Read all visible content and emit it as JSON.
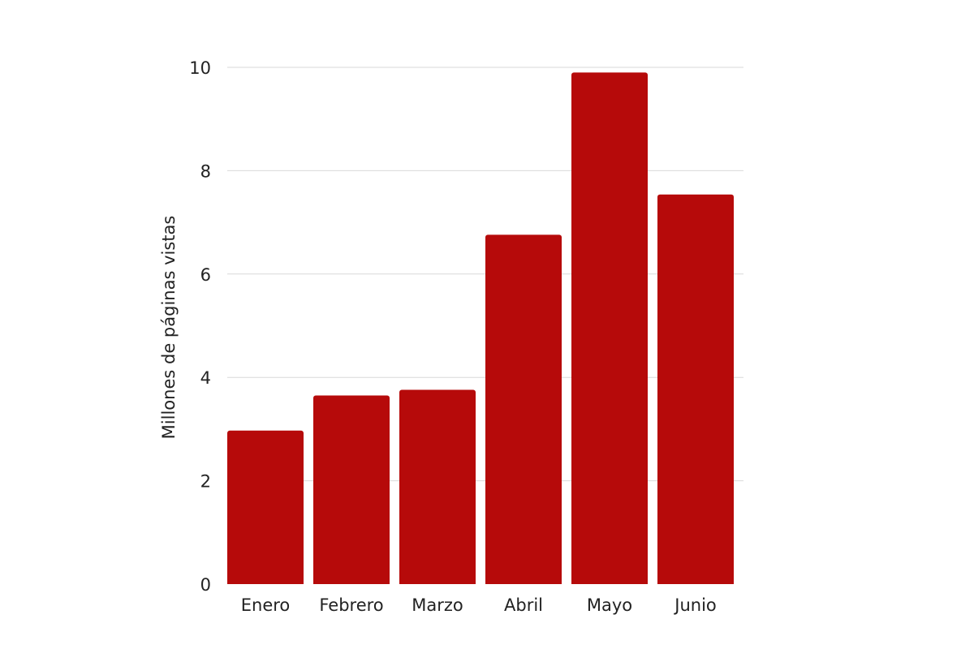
{
  "chart_data": {
    "type": "bar",
    "categories": [
      "Enero",
      "Febrero",
      "Marzo",
      "Abril",
      "Mayo",
      "Junio"
    ],
    "values": [
      2.97,
      3.65,
      3.76,
      6.76,
      9.9,
      7.54
    ],
    "title": "",
    "xlabel": "",
    "ylabel": "Millones de páginas vistas",
    "ylim": [
      0,
      10
    ],
    "yticks": [
      "0",
      "2",
      "4",
      "6",
      "8",
      "10"
    ],
    "grid": true,
    "bar_color": "#b60a0a",
    "grid_color": "#d9d9d9"
  }
}
